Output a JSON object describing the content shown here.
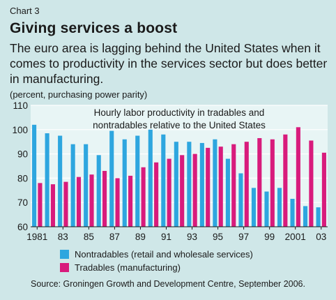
{
  "header": {
    "chart_label": "Chart 3",
    "title": "Giving services a boost",
    "subtitle": "The euro area is lagging behind the United States when it comes to productivity in the services sector but does better in manufacturing.",
    "units": "(percent, purchasing power parity)"
  },
  "source": "Source: Groningen Growth and Development Centre, September 2006.",
  "colors": {
    "background": "#cfe7e8",
    "plot_background": "#e8f5f5",
    "nontradables": "#2ea6df",
    "tradables": "#d81b7c"
  },
  "chart_data": {
    "type": "bar",
    "title": "Hourly labor productivity in tradables and nontradables relative to the United States",
    "title_lines": [
      "Hourly labor productivity in tradables and",
      "nontradables relative to the United States"
    ],
    "categories": [
      "1981",
      "1982",
      "1983",
      "1984",
      "1985",
      "1986",
      "1987",
      "1988",
      "1989",
      "1990",
      "1991",
      "1992",
      "1993",
      "1994",
      "1995",
      "1996",
      "1997",
      "1998",
      "1999",
      "2000",
      "2001",
      "2002",
      "2003"
    ],
    "x_tick_labels": [
      "1981",
      "83",
      "85",
      "87",
      "89",
      "91",
      "93",
      "95",
      "97",
      "99",
      "2001",
      "03"
    ],
    "ylim": [
      60,
      110
    ],
    "yticks": [
      60,
      70,
      80,
      90,
      100,
      110
    ],
    "grid": "horizontal",
    "legend_position": "bottom",
    "series": [
      {
        "name": "Nontradables (retail and wholesale services)",
        "values": [
          102,
          98.5,
          97.5,
          94,
          94,
          89.5,
          99.5,
          96,
          97.5,
          100,
          98,
          95,
          95,
          94.5,
          96,
          88,
          82,
          76,
          74.5,
          76,
          71.5,
          68.5,
          68
        ]
      },
      {
        "name": "Tradables (manufacturing)",
        "values": [
          78,
          77.5,
          78.5,
          80.5,
          81.5,
          83,
          80,
          81,
          84.5,
          86.5,
          88,
          89.5,
          90,
          92.5,
          93,
          94,
          95,
          96.5,
          96,
          98,
          101,
          95.5,
          90.5
        ]
      }
    ]
  }
}
